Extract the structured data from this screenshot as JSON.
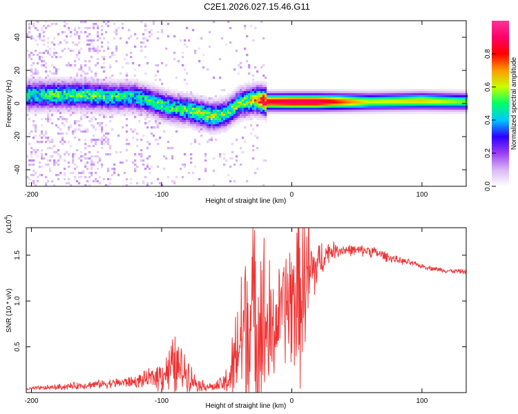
{
  "page_title": "C2E1.2026.027.15.46.G11",
  "chart_data": [
    {
      "type": "heatmap",
      "title": "C2E1.2026.027.15.46.G11",
      "xlabel": "Height of straight line (km)",
      "ylabel": "Frequency (Hz)",
      "xlim": [
        -204,
        134
      ],
      "ylim": [
        -50,
        50
      ],
      "xticks": [
        -200,
        -100,
        0,
        100
      ],
      "xtick_labels": [
        "-200",
        "-100",
        "0",
        "100"
      ],
      "yticks": [
        -40,
        -20,
        0,
        20,
        40
      ],
      "ytick_labels": [
        "-40",
        "-20",
        "0",
        "20",
        "40"
      ],
      "colorbar": {
        "label": "Normalized spectral amplitude",
        "range": [
          0.0,
          1.0
        ],
        "ticks": [
          0.0,
          0.2,
          0.4,
          0.6,
          0.8
        ],
        "tick_labels": [
          "0.0",
          "0.2",
          "0.4",
          "0.6",
          "0.8"
        ],
        "colormap": [
          "#ffffff",
          "#d9b8f5",
          "#9b3df5",
          "#2b00ff",
          "#00c8ff",
          "#00ff66",
          "#c8ff00",
          "#ff9900",
          "#ff0000",
          "#ff0066",
          "#ff3399"
        ]
      },
      "ridge": {
        "x": [
          -204,
          -180,
          -160,
          -140,
          -120,
          -110,
          -100,
          -90,
          -80,
          -70,
          -60,
          -50,
          -40,
          -30,
          -25,
          -20,
          0,
          20,
          60,
          100,
          134
        ],
        "freq": [
          5,
          5,
          5,
          4,
          4,
          2,
          -1,
          -3,
          -4,
          -6,
          -8,
          -6,
          0,
          2,
          2,
          1,
          1,
          1,
          1,
          1.5,
          1
        ],
        "peak_amplitude": [
          0.45,
          0.5,
          0.5,
          0.48,
          0.45,
          0.45,
          0.5,
          0.48,
          0.5,
          0.55,
          0.55,
          0.5,
          0.55,
          0.6,
          0.8,
          0.85,
          0.9,
          0.9,
          0.6,
          0.65,
          0.55
        ]
      }
    },
    {
      "type": "line",
      "xlabel": "Height of straight line (km)",
      "ylabel": "SNR (10 * v/v)",
      "y_scale_label": "(x10",
      "y_scale_exponent": "4",
      "xlim": [
        -204,
        134
      ],
      "ylim": [
        0,
        1.8
      ],
      "xticks": [
        -200,
        -100,
        0,
        100
      ],
      "xtick_labels": [
        "-200",
        "-100",
        "0",
        "100"
      ],
      "yticks": [
        0.5,
        1.0,
        1.5
      ],
      "ytick_labels": [
        "0.5",
        "1.0",
        "1.5"
      ],
      "line_color": "#ee3333",
      "series": [
        {
          "name": "SNR",
          "x": [
            -204,
            -180,
            -160,
            -140,
            -120,
            -110,
            -100,
            -95,
            -90,
            -85,
            -80,
            -75,
            -70,
            -60,
            -55,
            -50,
            -45,
            -40,
            -35,
            -30,
            -25,
            -20,
            -15,
            -10,
            -5,
            0,
            5,
            10,
            15,
            20,
            25,
            30,
            40,
            50,
            60,
            70,
            80,
            90,
            100,
            110,
            120,
            134
          ],
          "y": [
            0.04,
            0.06,
            0.08,
            0.1,
            0.12,
            0.15,
            0.2,
            0.25,
            0.28,
            0.25,
            0.22,
            0.12,
            0.08,
            0.06,
            0.08,
            0.12,
            0.25,
            0.55,
            0.75,
            0.85,
            0.8,
            0.7,
            0.6,
            0.85,
            0.95,
            1.0,
            1.05,
            1.2,
            1.3,
            1.4,
            1.5,
            1.55,
            1.56,
            1.55,
            1.55,
            1.5,
            1.45,
            1.42,
            1.38,
            1.35,
            1.33,
            1.32
          ],
          "envelope": [
            0.02,
            0.04,
            0.05,
            0.06,
            0.08,
            0.12,
            0.22,
            0.3,
            0.45,
            0.3,
            0.25,
            0.12,
            0.08,
            0.05,
            0.1,
            0.2,
            0.5,
            0.9,
            1.5,
            1.3,
            1.4,
            1.2,
            0.8,
            0.6,
            0.8,
            0.95,
            1.2,
            1.1,
            0.6,
            0.3,
            0.2,
            0.12,
            0.08,
            0.07,
            0.08,
            0.07,
            0.05,
            0.04,
            0.03,
            0.03,
            0.03,
            0.03
          ]
        }
      ]
    }
  ]
}
